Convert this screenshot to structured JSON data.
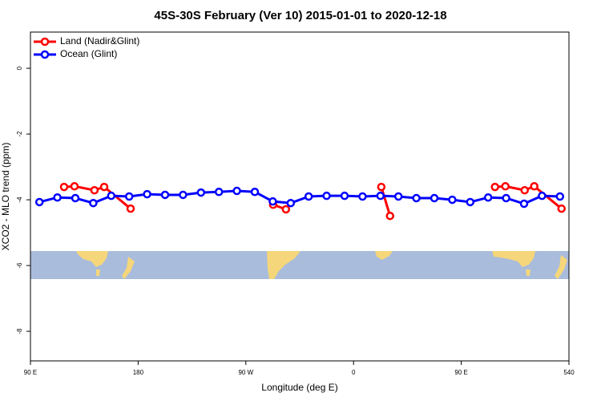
{
  "chart_data": {
    "type": "line",
    "title": "45S-30S February (Ver 10)   2015-01-01 to 2020-12-18",
    "x_label": "Longitude (deg E)",
    "y_label": "XCO2 - MLO trend (ppm)",
    "xlim": [
      90,
      540
    ],
    "ylim": [
      -8.9,
      1.1
    ],
    "xticks": [
      {
        "value": 90,
        "label": "90 E"
      },
      180,
      {
        "value": 270,
        "label": "90 W"
      },
      {
        "value": 360,
        "label": "0"
      },
      {
        "value": 450,
        "label": "90 E"
      },
      540
    ],
    "yticks": [
      0,
      -2,
      -4,
      -6,
      -8
    ],
    "legend": "top-left",
    "series": [
      {
        "name": "Land (Nadir&Glint)",
        "color": "#ff0000",
        "x": [
          118.1,
          126.8,
          143.5,
          151.6,
          173.7,
          null,
          292.8,
          303.5,
          null,
          383.2,
          390.5,
          null,
          478.2,
          486.9,
          503,
          511,
          533.8
        ],
        "values": [
          -3.61,
          -3.59,
          -3.71,
          -3.61,
          -4.27,
          null,
          -4.15,
          -4.29,
          null,
          -3.61,
          -4.49,
          null,
          -3.61,
          -3.59,
          -3.71,
          -3.59,
          -4.27
        ]
      },
      {
        "name": "Ocean (Glint)",
        "color": "#0000ff",
        "x": [
          97.5,
          112.5,
          127.5,
          142.5,
          157.5,
          172.5,
          187.5,
          202.5,
          217.5,
          232.5,
          247.5,
          262.5,
          277.5,
          292.5,
          307.5,
          322.5,
          337.5,
          352.5,
          367.5,
          382.5,
          397.5,
          412.5,
          427.5,
          442.5,
          457.5,
          472.5,
          487.5,
          502.5,
          517.5,
          532.5
        ],
        "values": [
          -4.07,
          -3.93,
          -3.95,
          -4.1,
          -3.88,
          -3.9,
          -3.83,
          -3.85,
          -3.85,
          -3.78,
          -3.76,
          -3.73,
          -3.76,
          -4.05,
          -4.1,
          -3.9,
          -3.88,
          -3.88,
          -3.9,
          -3.88,
          -3.9,
          -3.95,
          -3.95,
          -4.0,
          -4.07,
          -3.93,
          -3.95,
          -4.12,
          -3.88,
          -3.9
        ]
      }
    ]
  }
}
